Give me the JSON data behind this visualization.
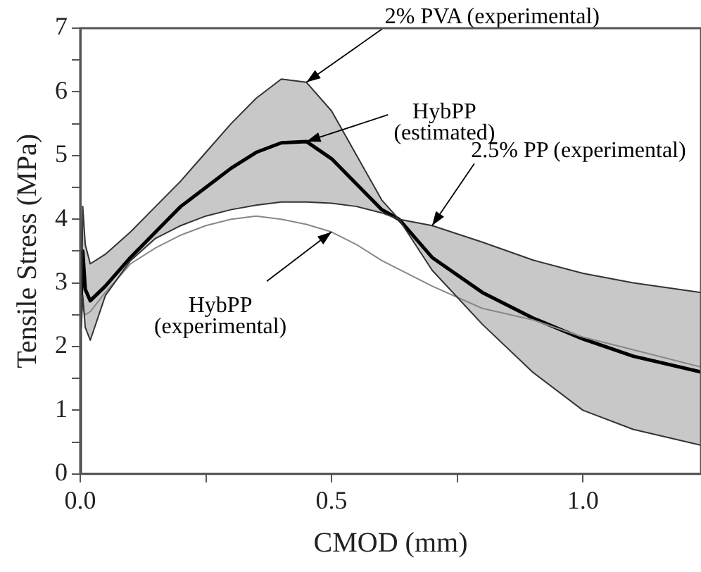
{
  "chart_data": {
    "type": "line",
    "xlabel": "CMOD (mm)",
    "ylabel": "Tensile Stress (MPa)",
    "series": [
      {
        "color": "#333333",
        "x": [
          0,
          0.002,
          0.005,
          0.01,
          0.02,
          0.05,
          0.1,
          0.15,
          0.2,
          0.25,
          0.3,
          0.35,
          0.4,
          0.45,
          0.5,
          0.55,
          0.6,
          0.634,
          0.7,
          0.8,
          0.9,
          1.0,
          1.1,
          1.235
        ],
        "values": [
          0,
          2.5,
          4.2,
          3.6,
          3.3,
          3.45,
          3.8,
          4.2,
          4.6,
          5.05,
          5.5,
          5.9,
          6.2,
          6.15,
          5.7,
          5.0,
          4.3,
          4.0,
          3.2,
          2.35,
          1.6,
          1.0,
          0.7,
          0.45
        ]
      },
      {
        "color": "#333333",
        "x": [
          0.002,
          0.005,
          0.01,
          0.02,
          0.05,
          0.1,
          0.15,
          0.2,
          0.25,
          0.3,
          0.35,
          0.4,
          0.45,
          0.5,
          0.55,
          0.6,
          0.634,
          0.7,
          0.8,
          0.9,
          1.0,
          1.1,
          1.235
        ],
        "values": [
          2.3,
          2.8,
          2.3,
          2.1,
          2.8,
          3.35,
          3.7,
          3.9,
          4.05,
          4.15,
          4.22,
          4.27,
          4.27,
          4.25,
          4.2,
          4.1,
          4.0,
          3.9,
          3.64,
          3.36,
          3.15,
          3.0,
          2.85
        ]
      },
      {
        "color": "#888888",
        "x": [
          0.005,
          0.01,
          0.02,
          0.05,
          0.1,
          0.15,
          0.2,
          0.25,
          0.3,
          0.35,
          0.4,
          0.45,
          0.5,
          0.55,
          0.6,
          0.7,
          0.8,
          0.9,
          1.0,
          1.1,
          1.235
        ],
        "values": [
          2.6,
          2.5,
          2.55,
          2.85,
          3.3,
          3.55,
          3.75,
          3.9,
          4.0,
          4.05,
          4.0,
          3.92,
          3.8,
          3.6,
          3.35,
          2.95,
          2.6,
          2.42,
          2.15,
          1.95,
          1.68
        ]
      },
      {
        "color": "#000000",
        "x": [
          0.002,
          0.005,
          0.01,
          0.02,
          0.05,
          0.1,
          0.15,
          0.2,
          0.25,
          0.3,
          0.35,
          0.4,
          0.45,
          0.5,
          0.55,
          0.6,
          0.634,
          0.7,
          0.8,
          0.9,
          1.0,
          1.1,
          1.235
        ],
        "values": [
          2.8,
          3.5,
          2.9,
          2.72,
          2.95,
          3.4,
          3.8,
          4.2,
          4.5,
          4.8,
          5.05,
          5.2,
          5.22,
          4.95,
          4.55,
          4.15,
          4.0,
          3.4,
          2.85,
          2.45,
          2.12,
          1.85,
          1.6
        ],
        "lower": [
          2.3,
          2.8,
          2.3,
          2.1,
          2.8,
          3.35,
          3.7,
          3.9,
          4.05,
          4.15,
          4.22,
          4.27,
          4.27,
          4.25,
          4.2,
          4.1,
          4.0,
          3.2,
          2.35,
          1.6,
          1.0,
          0.7,
          0.45
        ],
        "upper": [
          2.5,
          4.2,
          3.6,
          3.3,
          3.45,
          3.8,
          4.2,
          4.6,
          5.05,
          5.5,
          5.9,
          6.2,
          6.15,
          5.7,
          5.0,
          4.3,
          4.0,
          3.9,
          3.64,
          3.36,
          3.15,
          3.0,
          2.85
        ]
      }
    ],
    "annotations": [
      {
        "text": "2% PVA (experimental)",
        "x": 0.45,
        "y": 6.15
      },
      {
        "text": "HybPP\n(estimated)",
        "x": 0.45,
        "y": 5.22
      },
      {
        "text": "2.5% PP (experimental)",
        "x": 0.7,
        "y": 3.9
      },
      {
        "text": "HybPP\n(experimental)",
        "x": 0.5,
        "y": 3.8
      }
    ],
    "xlim": [
      0,
      1.235
    ],
    "xticks": [
      {
        "value": 0,
        "label": "0.0"
      },
      {
        "value": 0.25,
        "label": null
      },
      {
        "value": 0.5,
        "label": "0.5"
      },
      {
        "value": 0.75,
        "label": null
      },
      {
        "value": 1,
        "label": "1.0"
      }
    ],
    "ylim": [
      0,
      7
    ],
    "yticks": [
      0,
      {
        "value": 0.5,
        "label": null
      },
      1,
      {
        "value": 1.5,
        "label": null
      },
      2,
      {
        "value": 2.5,
        "label": null
      },
      3,
      {
        "value": 3.5,
        "label": null
      },
      4,
      {
        "value": 4.5,
        "label": null
      },
      5,
      {
        "value": 5.5,
        "label": null
      },
      6,
      {
        "value": 6.5,
        "label": null
      },
      7
    ],
    "grid": false,
    "legend": false,
    "marker": "none",
    "line_style": "solid"
  }
}
